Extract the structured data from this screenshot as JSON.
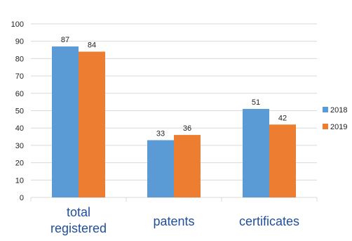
{
  "chart_data": {
    "type": "bar",
    "categories": [
      [
        "total",
        "registered"
      ],
      [
        "patents"
      ],
      [
        "certificates"
      ]
    ],
    "series": [
      {
        "name": "2018",
        "values": [
          87,
          33,
          51
        ],
        "color": "#5b9bd5"
      },
      {
        "name": "2019",
        "values": [
          84,
          36,
          42
        ],
        "color": "#ed7d31"
      }
    ],
    "ylim": [
      0,
      100
    ],
    "yticks": [
      0,
      10,
      20,
      30,
      40,
      50,
      60,
      70,
      80,
      90,
      100
    ],
    "grid": true,
    "legend": "right",
    "axis_color": "#d9d9d9"
  }
}
